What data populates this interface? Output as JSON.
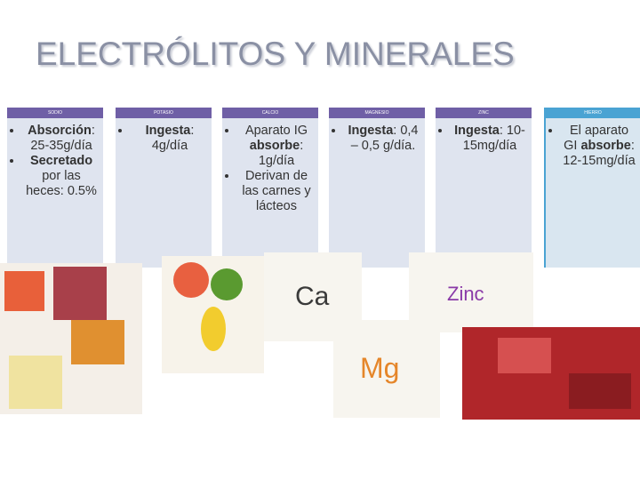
{
  "header": {
    "title": "ELECTRÓLITOS Y MINERALES"
  },
  "columns": [
    {
      "header": "SODIO",
      "bullets": [
        [
          {
            "text": "Absorción",
            "bold": true
          },
          {
            "text": ": 25-35g/día",
            "bold": false
          }
        ],
        [
          {
            "text": "Secretado",
            "bold": true
          },
          {
            "text": " por las heces: 0.5%",
            "bold": false
          }
        ]
      ]
    },
    {
      "header": "POTASIO",
      "bullets": [
        [
          {
            "text": "Ingesta",
            "bold": true
          },
          {
            "text": ": 4g/día",
            "bold": false
          }
        ]
      ]
    },
    {
      "header": "CALCIO",
      "bullets": [
        [
          {
            "text": "Aparato IG ",
            "bold": false
          },
          {
            "text": "absorbe",
            "bold": true
          },
          {
            "text": ": 1g/día",
            "bold": false
          }
        ],
        [
          {
            "text": "Derivan de las carnes y lácteos",
            "bold": false
          }
        ]
      ]
    },
    {
      "header": "MAGNESIO",
      "bullets": [
        [
          {
            "text": "Ingesta",
            "bold": true
          },
          {
            "text": ": 0,4 – 0,5 g/día.",
            "bold": false
          }
        ]
      ]
    },
    {
      "header": "ZINC",
      "bullets": [
        [
          {
            "text": "Ingesta",
            "bold": true
          },
          {
            "text": ": 10-15mg/día",
            "bold": false
          }
        ]
      ]
    },
    {
      "header": "HIERRO",
      "bullets": [
        [
          {
            "text": "El aparato GI ",
            "bold": false
          },
          {
            "text": "absorbe",
            "bold": true
          },
          {
            "text": ": 12-15mg/día",
            "bold": false
          }
        ]
      ]
    }
  ],
  "images": {
    "calcium": "Ca",
    "magnesium": "Mg",
    "zinc": "Zinc"
  }
}
